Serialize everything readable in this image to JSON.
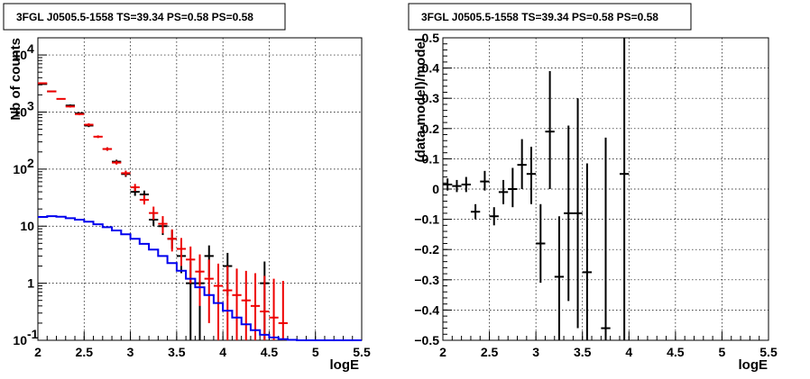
{
  "chart_data": [
    {
      "type": "scatter",
      "title": "3FGL J0505.5-1558 TS=39.34 PS=0.58 PS=0.58",
      "xlabel": "logE",
      "ylabel": "Nb of counts",
      "xlim": [
        2,
        5.5
      ],
      "ylim": [
        0.1,
        20000
      ],
      "yscale": "log",
      "grid": true,
      "x_ticks": [
        "2",
        "2.5",
        "3",
        "3.5",
        "4",
        "4.5",
        "5",
        "5.5"
      ],
      "y_ticks": [
        {
          "value": 0.1,
          "label": "10",
          "exp": "-1"
        },
        {
          "value": 1,
          "label": "1",
          "exp": ""
        },
        {
          "value": 10,
          "label": "10",
          "exp": ""
        },
        {
          "value": 100,
          "label": "10",
          "exp": "2"
        },
        {
          "value": 1000,
          "label": "10",
          "exp": "3"
        },
        {
          "value": 10000,
          "label": "10",
          "exp": "4"
        }
      ],
      "series": [
        {
          "style": "points",
          "color": "#000000",
          "points": [
            {
              "x": 2.05,
              "y": 3100,
              "lo": 3050,
              "hi": 3150
            },
            {
              "x": 2.15,
              "y": 2300,
              "lo": 2260,
              "hi": 2340
            },
            {
              "x": 2.35,
              "y": 1300,
              "lo": 1240,
              "hi": 1360
            },
            {
              "x": 2.45,
              "y": 950,
              "lo": 910,
              "hi": 990
            },
            {
              "x": 2.55,
              "y": 580,
              "lo": 545,
              "hi": 615
            },
            {
              "x": 2.75,
              "y": 225,
              "lo": 210,
              "hi": 240
            },
            {
              "x": 2.85,
              "y": 135,
              "lo": 124,
              "hi": 146
            },
            {
              "x": 2.95,
              "y": 82,
              "lo": 73,
              "hi": 91
            },
            {
              "x": 3.05,
              "y": 40,
              "lo": 34,
              "hi": 47
            },
            {
              "x": 3.15,
              "y": 36,
              "lo": 30,
              "hi": 42
            },
            {
              "x": 3.25,
              "y": 13,
              "lo": 10,
              "hi": 17
            },
            {
              "x": 3.35,
              "y": 10,
              "lo": 7,
              "hi": 13
            },
            {
              "x": 3.45,
              "y": 6,
              "lo": 4,
              "hi": 8.5
            },
            {
              "x": 3.55,
              "y": 3,
              "lo": 1.5,
              "hi": 4.6
            },
            {
              "x": 3.65,
              "y": 1,
              "lo": 0.1,
              "hi": 2.4
            },
            {
              "x": 3.75,
              "y": 1,
              "lo": 0.1,
              "hi": 2.4
            },
            {
              "x": 3.85,
              "y": 3,
              "lo": 1.3,
              "hi": 4.6
            },
            {
              "x": 4.05,
              "y": 2,
              "lo": 0.6,
              "hi": 3.4
            },
            {
              "x": 4.45,
              "y": 1,
              "lo": 0.1,
              "hi": 2.4
            }
          ]
        },
        {
          "style": "points",
          "color": "#ee0000",
          "points": [
            {
              "x": 2.05,
              "y": 3200,
              "lo": 3150,
              "hi": 3260
            },
            {
              "x": 2.15,
              "y": 2300,
              "lo": 2250,
              "hi": 2350
            },
            {
              "x": 2.25,
              "y": 1700,
              "lo": 1660,
              "hi": 1740
            },
            {
              "x": 2.35,
              "y": 1250,
              "lo": 1200,
              "hi": 1300
            },
            {
              "x": 2.45,
              "y": 920,
              "lo": 880,
              "hi": 960
            },
            {
              "x": 2.55,
              "y": 600,
              "lo": 565,
              "hi": 635
            },
            {
              "x": 2.65,
              "y": 370,
              "lo": 350,
              "hi": 390
            },
            {
              "x": 2.75,
              "y": 225,
              "lo": 210,
              "hi": 240
            },
            {
              "x": 2.85,
              "y": 130,
              "lo": 120,
              "hi": 140
            },
            {
              "x": 2.95,
              "y": 85,
              "lo": 76,
              "hi": 94
            },
            {
              "x": 3.05,
              "y": 48,
              "lo": 41,
              "hi": 55
            },
            {
              "x": 3.15,
              "y": 29,
              "lo": 24,
              "hi": 35
            },
            {
              "x": 3.25,
              "y": 17,
              "lo": 13,
              "hi": 22
            },
            {
              "x": 3.35,
              "y": 11,
              "lo": 7.5,
              "hi": 15
            },
            {
              "x": 3.45,
              "y": 6,
              "lo": 3.6,
              "hi": 8.8
            },
            {
              "x": 3.55,
              "y": 4,
              "lo": 2,
              "hi": 6.2
            },
            {
              "x": 3.65,
              "y": 2.6,
              "lo": 1,
              "hi": 4.4
            },
            {
              "x": 3.75,
              "y": 1.6,
              "lo": 0.4,
              "hi": 3.2
            },
            {
              "x": 3.85,
              "y": 1.2,
              "lo": 0.2,
              "hi": 2.6
            },
            {
              "x": 3.95,
              "y": 0.9,
              "lo": 0.1,
              "hi": 2.2
            },
            {
              "x": 4.05,
              "y": 0.75,
              "lo": 0.1,
              "hi": 2
            },
            {
              "x": 4.15,
              "y": 0.62,
              "lo": 0.1,
              "hi": 1.8
            },
            {
              "x": 4.25,
              "y": 0.5,
              "lo": 0.1,
              "hi": 1.65
            },
            {
              "x": 4.35,
              "y": 0.4,
              "lo": 0.1,
              "hi": 1.5
            },
            {
              "x": 4.45,
              "y": 0.32,
              "lo": 0.1,
              "hi": 1.35
            },
            {
              "x": 4.55,
              "y": 0.25,
              "lo": 0.1,
              "hi": 1.2
            },
            {
              "x": 4.65,
              "y": 0.2,
              "lo": 0.1,
              "hi": 1.1
            }
          ]
        },
        {
          "style": "step",
          "color": "#0000ee",
          "bin_edges": [
            2.0,
            2.1,
            2.2,
            2.3,
            2.4,
            2.5,
            2.6,
            2.7,
            2.8,
            2.9,
            3.0,
            3.1,
            3.2,
            3.3,
            3.4,
            3.5,
            3.6,
            3.7,
            3.8,
            3.9,
            4.0,
            4.1,
            4.2,
            4.3,
            4.4,
            4.5,
            4.6,
            4.7,
            4.8,
            4.9,
            5.0,
            5.1,
            5.2,
            5.3,
            5.4,
            5.5
          ],
          "values": [
            14.5,
            15.0,
            14.6,
            13.8,
            13.0,
            12.0,
            10.8,
            9.6,
            8.4,
            7.2,
            6.0,
            4.9,
            3.9,
            3.0,
            2.25,
            1.65,
            1.2,
            0.85,
            0.62,
            0.45,
            0.33,
            0.25,
            0.19,
            0.15,
            0.125,
            0.112,
            0.105,
            0.102,
            0.1,
            0.1,
            0.1,
            0.1,
            0.1,
            0.1,
            0.1
          ]
        }
      ]
    },
    {
      "type": "scatter",
      "title": "3FGL J0505.5-1558 TS=39.34 PS=0.58 PS=0.58",
      "xlabel": "logE",
      "ylabel": "(data-model)/model",
      "xlim": [
        2,
        5.5
      ],
      "ylim": [
        -0.5,
        0.5
      ],
      "yscale": "linear",
      "grid": true,
      "x_ticks": [
        "2",
        "2.5",
        "3",
        "3.5",
        "4",
        "4.5",
        "5",
        "5.5"
      ],
      "y_ticks": [
        "−0.5",
        "−0.4",
        "−0.3",
        "−0.2",
        "−0.1",
        "0",
        "0.1",
        "0.2",
        "0.3",
        "0.4",
        "0.5"
      ],
      "series": [
        {
          "style": "points",
          "color": "#000000",
          "points": [
            {
              "x": 2.05,
              "y": 0.015,
              "lo": -0.005,
              "hi": 0.035
            },
            {
              "x": 2.15,
              "y": 0.01,
              "lo": -0.01,
              "hi": 0.03
            },
            {
              "x": 2.25,
              "y": 0.015,
              "lo": -0.01,
              "hi": 0.04
            },
            {
              "x": 2.35,
              "y": -0.075,
              "lo": -0.1,
              "hi": -0.05
            },
            {
              "x": 2.45,
              "y": 0.025,
              "lo": -0.005,
              "hi": 0.06
            },
            {
              "x": 2.55,
              "y": -0.09,
              "lo": -0.12,
              "hi": -0.06
            },
            {
              "x": 2.65,
              "y": -0.01,
              "lo": -0.05,
              "hi": 0.03
            },
            {
              "x": 2.75,
              "y": 0.0,
              "lo": -0.06,
              "hi": 0.07
            },
            {
              "x": 2.85,
              "y": 0.08,
              "lo": 0.0,
              "hi": 0.165
            },
            {
              "x": 2.95,
              "y": 0.05,
              "lo": -0.05,
              "hi": 0.14
            },
            {
              "x": 3.05,
              "y": -0.18,
              "lo": -0.31,
              "hi": -0.05
            },
            {
              "x": 3.15,
              "y": 0.19,
              "lo": 0.0,
              "hi": 0.39
            },
            {
              "x": 3.25,
              "y": -0.29,
              "lo": -0.5,
              "hi": -0.09
            },
            {
              "x": 3.35,
              "y": -0.08,
              "lo": -0.37,
              "hi": 0.21
            },
            {
              "x": 3.45,
              "y": -0.08,
              "lo": -0.46,
              "hi": 0.3
            },
            {
              "x": 3.55,
              "y": -0.275,
              "lo": -0.5,
              "hi": 0.085
            },
            {
              "x": 3.75,
              "y": -0.46,
              "lo": -0.5,
              "hi": 0.17
            },
            {
              "x": 3.95,
              "y": 0.05,
              "lo": -0.5,
              "hi": 0.5
            }
          ]
        }
      ]
    }
  ]
}
